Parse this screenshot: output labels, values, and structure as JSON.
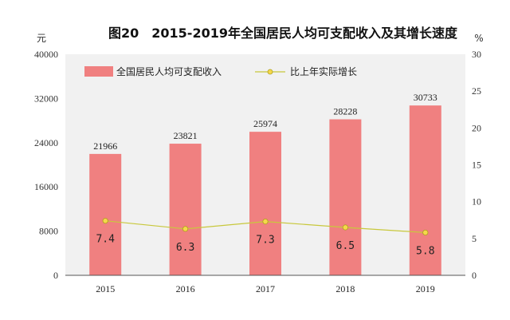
{
  "chart_data": {
    "type": "bar",
    "title": "图20　2015-2019年全国居民人均可支配收入及其增长速度",
    "ylabel_left": "元",
    "ylabel_right": "%",
    "categories": [
      "2015",
      "2016",
      "2017",
      "2018",
      "2019"
    ],
    "series": [
      {
        "name": "全国居民人均可支配收入",
        "type": "bar",
        "axis": "left",
        "color": "#f08080",
        "values": [
          21966,
          23821,
          25974,
          28228,
          30733
        ],
        "labels": [
          "21966",
          "23821",
          "25974",
          "28228",
          "30733"
        ]
      },
      {
        "name": "比上年实际增长",
        "type": "line",
        "axis": "right",
        "color": "#c8c83c",
        "marker_fill": "#f5d84a",
        "values": [
          7.4,
          6.3,
          7.3,
          6.5,
          5.8
        ],
        "labels": [
          "7.4",
          "6.3",
          "7.3",
          "6.5",
          "5.8"
        ]
      }
    ],
    "ylim_left": [
      0,
      40000
    ],
    "ylim_right": [
      0,
      30
    ],
    "yticks_left": [
      "0",
      "8000",
      "16000",
      "24000",
      "32000",
      "40000"
    ],
    "yticks_right": [
      "0",
      "5",
      "10",
      "15",
      "20",
      "25",
      "30"
    ],
    "legend_position": "top-left",
    "plot_background": "#f1f1f1",
    "grid": false
  }
}
